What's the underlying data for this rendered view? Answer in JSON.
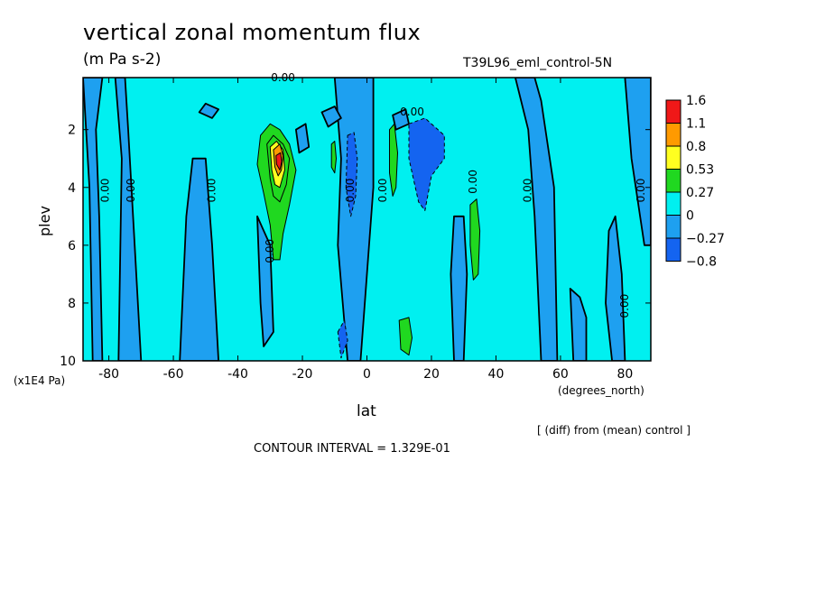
{
  "title": "vertical zonal momentum flux",
  "subtitle": "(m Pa s-2)",
  "run_id": "T39L96_eml_control-5N",
  "diff_note": "[ (diff) from (mean) control ]",
  "contour_interval": "CONTOUR INTERVAL = 1.329E-01",
  "chart_data": {
    "type": "heatmap",
    "title": "vertical zonal momentum flux",
    "xlabel": "lat",
    "ylabel": "plev",
    "x_units": "(degrees_north)",
    "y_units": "(x1E4 Pa)",
    "xlim": [
      -88,
      88
    ],
    "ylim": [
      10,
      0.2
    ],
    "x_ticks": [
      -80,
      -60,
      -40,
      -20,
      0,
      20,
      40,
      60,
      80
    ],
    "x_tick_labels": [
      "-80",
      "-60",
      "-40",
      "-20",
      "0",
      "20",
      "40",
      "60",
      "80"
    ],
    "y_ticks": [
      2,
      4,
      6,
      8,
      10
    ],
    "y_tick_labels": [
      "2",
      "4",
      "6",
      "8",
      "10"
    ],
    "colorbar": {
      "labels": [
        "1.6",
        "1.1",
        "0.8",
        "0.53",
        "0.27",
        "0",
        "−0.27",
        "−0.8"
      ],
      "colors": [
        "#f01818",
        "#ff9a00",
        "#ffff20",
        "#20d820",
        "#00f0f0",
        "#1ea0f0",
        "#1464f0"
      ]
    },
    "contour_labels": [
      "0.00",
      "0.00",
      "0.00",
      "0.00",
      "0.00",
      "0.00",
      "0.00",
      "0.00",
      "0.00",
      "0.00",
      "0.00",
      "0.00"
    ],
    "regions": [
      {
        "level": 0,
        "points": [
          [
            -88,
            0.2
          ],
          [
            -86,
            4
          ],
          [
            -85,
            10
          ],
          [
            -82,
            10
          ],
          [
            -83,
            5
          ],
          [
            -84,
            2
          ],
          [
            -82,
            0.2
          ]
        ]
      },
      {
        "level": 0,
        "points": [
          [
            -78,
            0.2
          ],
          [
            -76,
            3
          ],
          [
            -77,
            10
          ],
          [
            -70,
            10
          ],
          [
            -72,
            6
          ],
          [
            -74,
            2
          ],
          [
            -75,
            0.2
          ]
        ]
      },
      {
        "level": 0,
        "points": [
          [
            -58,
            10
          ],
          [
            -56,
            5
          ],
          [
            -54,
            3
          ],
          [
            -50,
            3
          ],
          [
            -48,
            6
          ],
          [
            -46,
            10
          ]
        ]
      },
      {
        "level": 0,
        "points": [
          [
            -34,
            5
          ],
          [
            -33,
            8
          ],
          [
            -32,
            9.5
          ],
          [
            -29,
            9
          ],
          [
            -30,
            6
          ]
        ]
      },
      {
        "level": 0,
        "points": [
          [
            -10,
            0.2
          ],
          [
            -8,
            3
          ],
          [
            -9,
            6
          ],
          [
            -6,
            10
          ],
          [
            -2,
            10
          ],
          [
            0,
            7
          ],
          [
            2,
            4
          ],
          [
            2,
            0.2
          ]
        ]
      },
      {
        "level": 0,
        "points": [
          [
            27,
            5
          ],
          [
            26,
            7
          ],
          [
            27,
            10
          ],
          [
            30,
            10
          ],
          [
            31,
            7
          ],
          [
            30,
            5
          ]
        ]
      },
      {
        "level": 0,
        "points": [
          [
            46,
            0.2
          ],
          [
            50,
            2
          ],
          [
            52,
            5
          ],
          [
            54,
            10
          ],
          [
            59,
            10
          ],
          [
            58,
            4
          ],
          [
            54,
            1
          ],
          [
            52,
            0.2
          ]
        ]
      },
      {
        "level": 0,
        "points": [
          [
            63,
            7.5
          ],
          [
            64,
            10
          ],
          [
            68,
            10
          ],
          [
            68,
            8.5
          ],
          [
            66,
            7.8
          ]
        ]
      },
      {
        "level": 0,
        "points": [
          [
            75,
            5.5
          ],
          [
            74,
            8
          ],
          [
            76,
            10
          ],
          [
            80,
            10
          ],
          [
            79,
            7
          ],
          [
            77,
            5
          ]
        ]
      },
      {
        "level": 0,
        "points": [
          [
            80,
            0.2
          ],
          [
            82,
            3
          ],
          [
            86,
            6
          ],
          [
            88,
            6
          ],
          [
            88,
            0.2
          ]
        ]
      },
      {
        "level": 0,
        "points": [
          [
            -50,
            1.1
          ],
          [
            -46,
            1.3
          ],
          [
            -48,
            1.6
          ],
          [
            -52,
            1.4
          ]
        ]
      },
      {
        "level": 0,
        "points": [
          [
            -14,
            1.4
          ],
          [
            -10,
            1.2
          ],
          [
            -8,
            1.6
          ],
          [
            -12,
            1.9
          ]
        ]
      },
      {
        "level": 0,
        "points": [
          [
            8,
            1.5
          ],
          [
            12,
            1.3
          ],
          [
            13,
            1.8
          ],
          [
            9,
            2
          ]
        ]
      },
      {
        "level": 0,
        "points": [
          [
            -22,
            2
          ],
          [
            -19,
            1.8
          ],
          [
            -18,
            2.6
          ],
          [
            -21,
            2.8
          ]
        ]
      },
      {
        "level": 1,
        "points": [
          [
            -33,
            2.2
          ],
          [
            -30,
            1.8
          ],
          [
            -27,
            2
          ],
          [
            -24,
            2.5
          ],
          [
            -22,
            3.4
          ],
          [
            -24,
            4.6
          ],
          [
            -26,
            5.6
          ],
          [
            -27,
            6.5
          ],
          [
            -29,
            6.5
          ],
          [
            -30,
            5.3
          ],
          [
            -32,
            4.2
          ],
          [
            -34,
            3.2
          ]
        ]
      },
      {
        "level": 2,
        "points": [
          [
            -31,
            2.5
          ],
          [
            -29,
            2.2
          ],
          [
            -26,
            2.5
          ],
          [
            -24,
            3
          ],
          [
            -25,
            3.9
          ],
          [
            -27,
            4.5
          ],
          [
            -29,
            4.3
          ],
          [
            -30,
            3.7
          ]
        ]
      },
      {
        "level": 3,
        "points": [
          [
            -30,
            2.6
          ],
          [
            -28,
            2.4
          ],
          [
            -26,
            2.7
          ],
          [
            -25.5,
            3.4
          ],
          [
            -27,
            4
          ],
          [
            -28.5,
            3.9
          ],
          [
            -29.5,
            3.4
          ]
        ]
      },
      {
        "level": 4,
        "points": [
          [
            -29,
            2.7
          ],
          [
            -27,
            2.5
          ],
          [
            -26,
            2.9
          ],
          [
            -26.5,
            3.4
          ],
          [
            -27.5,
            3.6
          ],
          [
            -28.5,
            3.3
          ]
        ]
      },
      {
        "level": 5,
        "points": [
          [
            -28.2,
            2.9
          ],
          [
            -26.8,
            2.8
          ],
          [
            -26.4,
            3.1
          ],
          [
            -27,
            3.4
          ],
          [
            -28,
            3.2
          ]
        ]
      },
      {
        "level": 1,
        "points": [
          [
            -11,
            2.5
          ],
          [
            -10,
            2.4
          ],
          [
            -9.5,
            3
          ],
          [
            -10,
            3.5
          ],
          [
            -11,
            3.3
          ]
        ]
      },
      {
        "level": 1,
        "points": [
          [
            7,
            2
          ],
          [
            8.5,
            1.8
          ],
          [
            9.5,
            2.8
          ],
          [
            9,
            4
          ],
          [
            8,
            4.3
          ],
          [
            7,
            3.5
          ]
        ]
      },
      {
        "level": 1,
        "points": [
          [
            32,
            4.6
          ],
          [
            34,
            4.4
          ],
          [
            35,
            5.5
          ],
          [
            34.5,
            7
          ],
          [
            33,
            7.2
          ],
          [
            32,
            6
          ]
        ]
      },
      {
        "level": 1,
        "points": [
          [
            10,
            8.6
          ],
          [
            13,
            8.5
          ],
          [
            14,
            9.2
          ],
          [
            13,
            9.8
          ],
          [
            10.5,
            9.6
          ]
        ]
      },
      {
        "level": -2,
        "points": [
          [
            -6,
            2.2
          ],
          [
            -4,
            2.1
          ],
          [
            -3,
            3
          ],
          [
            -3.5,
            4.3
          ],
          [
            -5,
            5
          ],
          [
            -6.5,
            4
          ]
        ]
      },
      {
        "level": -2,
        "points": [
          [
            13,
            1.8
          ],
          [
            18,
            1.6
          ],
          [
            24,
            2.2
          ],
          [
            24,
            3
          ],
          [
            20,
            3.6
          ],
          [
            18,
            4.8
          ],
          [
            16,
            4.5
          ],
          [
            13,
            3
          ]
        ]
      },
      {
        "level": -2,
        "points": [
          [
            -9,
            9
          ],
          [
            -7,
            8.6
          ],
          [
            -6,
            9.3
          ],
          [
            -8,
            9.9
          ]
        ]
      }
    ]
  }
}
